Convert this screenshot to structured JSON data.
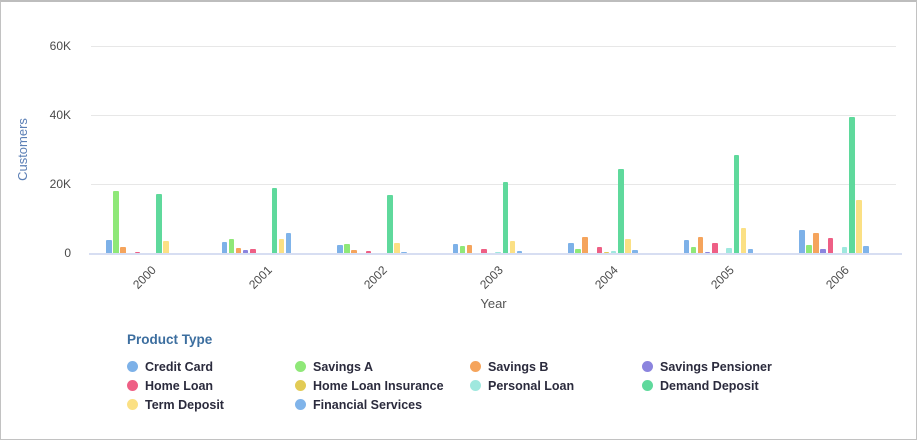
{
  "chart_data": {
    "type": "bar",
    "title": "",
    "xlabel": "Year",
    "ylabel": "Customers",
    "categories": [
      "2000",
      "2001",
      "2002",
      "2003",
      "2004",
      "2005",
      "2006"
    ],
    "ylim": [
      0,
      60000
    ],
    "y_ticks": [
      {
        "value": 0,
        "label": "0"
      },
      {
        "value": 20000,
        "label": "20K"
      },
      {
        "value": 40000,
        "label": "40K"
      },
      {
        "value": 60000,
        "label": "60K"
      }
    ],
    "grid": true,
    "legend_title": "Product Type",
    "legend_position": "bottom",
    "series": [
      {
        "name": "Credit Card",
        "color": "#7db1e8",
        "values": [
          3800,
          3200,
          2200,
          2600,
          3000,
          3800,
          6800
        ]
      },
      {
        "name": "Savings A",
        "color": "#8fe878",
        "values": [
          18000,
          4000,
          2600,
          2000,
          1300,
          1800,
          2200
        ]
      },
      {
        "name": "Savings B",
        "color": "#f5a45c",
        "values": [
          1700,
          1400,
          800,
          2200,
          4600,
          4600,
          5900
        ]
      },
      {
        "name": "Savings Pensioner",
        "color": "#8b84de",
        "values": [
          0,
          900,
          0,
          0,
          0,
          300,
          1100
        ]
      },
      {
        "name": "Home Loan",
        "color": "#ee5f85",
        "values": [
          400,
          1200,
          500,
          1100,
          1700,
          2800,
          4300
        ]
      },
      {
        "name": "Home Loan Insurance",
        "color": "#e2cb55",
        "values": [
          0,
          0,
          0,
          0,
          300,
          0,
          0
        ]
      },
      {
        "name": "Personal Loan",
        "color": "#9fe8de",
        "values": [
          0,
          0,
          0,
          400,
          700,
          1400,
          1700
        ]
      },
      {
        "name": "Demand Deposit",
        "color": "#5fd99c",
        "values": [
          17000,
          18800,
          16800,
          20600,
          24300,
          28400,
          39400
        ]
      },
      {
        "name": "Term Deposit",
        "color": "#fbe084",
        "values": [
          3500,
          4000,
          3000,
          3400,
          4000,
          7200,
          15300
        ]
      },
      {
        "name": "Financial Services",
        "color": "#80b4ea",
        "values": [
          0,
          5800,
          300,
          500,
          900,
          1200,
          1900
        ]
      }
    ],
    "colors": {
      "y_axis_title": "#5b7fb5",
      "tick_text": "#4a4a4a",
      "gridline": "#e7e7e7",
      "axis_line": "#d7def2",
      "legend_title": "#3c6e9f",
      "legend_text": "#2b2b3d"
    }
  }
}
